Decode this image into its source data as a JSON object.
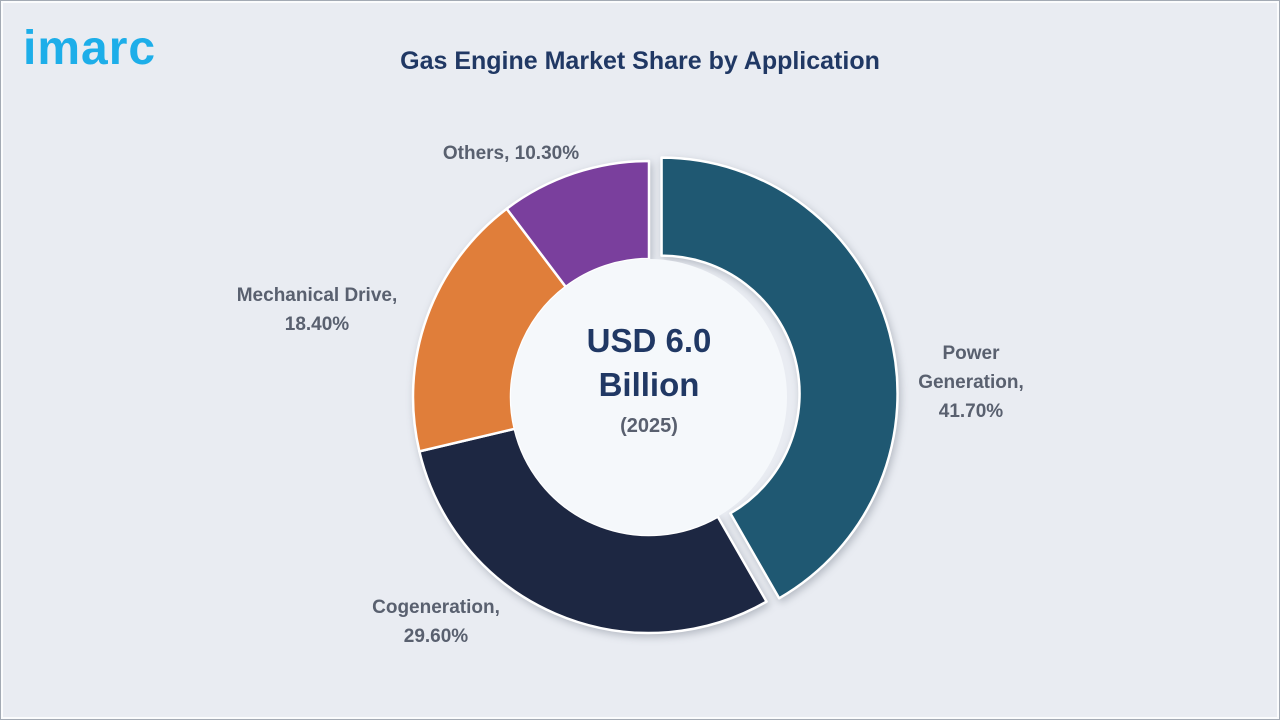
{
  "brand": {
    "name": "imarc"
  },
  "chart_data": {
    "type": "pie",
    "subtype": "donut",
    "title": "Gas Engine Market Share by Application",
    "legend_position": "callout-labels",
    "center_label": {
      "line1": "USD 6.0",
      "line2": "Billion",
      "sub": "(2025)"
    },
    "categories": [
      "Power Generation",
      "Cogeneration",
      "Mechanical Drive",
      "Others"
    ],
    "values": [
      41.7,
      29.6,
      18.4,
      10.3
    ],
    "segments": [
      {
        "name": "Power Generation",
        "label": "Power Generation,",
        "pct": "41.70%",
        "value": 41.7,
        "color": "#1f5872",
        "exploded": true
      },
      {
        "name": "Cogeneration",
        "label": "Cogeneration,",
        "pct": "29.60%",
        "value": 29.6,
        "color": "#1d2742",
        "exploded": false
      },
      {
        "name": "Mechanical Drive",
        "label": "Mechanical Drive,",
        "pct": "18.40%",
        "value": 18.4,
        "color": "#e07e3a",
        "exploded": false
      },
      {
        "name": "Others",
        "label": "Others,",
        "pct": "10.30%",
        "value": 10.3,
        "color": "#7a3f9d",
        "exploded": false
      }
    ]
  }
}
